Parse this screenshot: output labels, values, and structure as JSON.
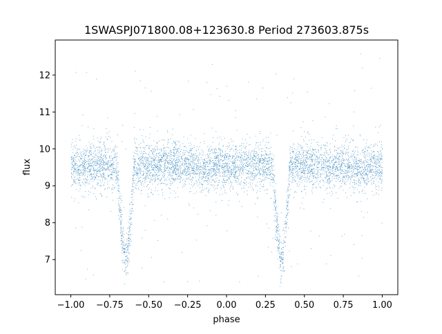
{
  "chart_data": {
    "type": "scatter",
    "title": "1SWASPJ071800.08+123630.8 Period 273603.875s",
    "xlabel": "phase",
    "ylabel": "flux",
    "xlim": [
      -1.1,
      1.1
    ],
    "ylim": [
      6.05,
      12.95
    ],
    "grid": false,
    "legend": "none",
    "point_color": "#1f77b4",
    "x_ticks": [
      -1.0,
      -0.75,
      -0.5,
      -0.25,
      0.0,
      0.25,
      0.5,
      0.75,
      1.0
    ],
    "x_tick_labels": [
      "−1.00",
      "−0.75",
      "−0.50",
      "−0.25",
      "0.00",
      "0.25",
      "0.50",
      "0.75",
      "1.00"
    ],
    "y_ticks": [
      7,
      8,
      9,
      10,
      11,
      12
    ],
    "y_tick_labels": [
      "7",
      "8",
      "9",
      "10",
      "11",
      "12"
    ],
    "light_curve": {
      "phase_range": [
        -1.0,
        1.0
      ],
      "baseline_flux": 9.55,
      "scatter_sigma": 0.3,
      "primary_eclipse": {
        "phases": [
          -0.65,
          0.35
        ],
        "min_flux": 7.0,
        "half_width": 0.055
      },
      "secondary_eclipse": {
        "phases": [
          -0.15,
          0.85
        ],
        "min_flux": 9.4,
        "half_width": 0.05
      },
      "outlier_range": [
        6.4,
        12.6
      ],
      "n_points": 6000
    }
  }
}
